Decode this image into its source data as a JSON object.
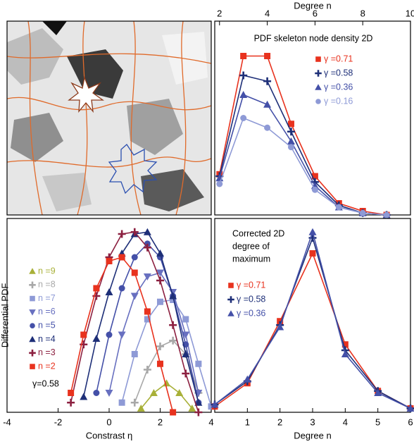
{
  "chart_data": [
    {
      "type": "line",
      "title": "PDF skeleton node density 2D",
      "xlabel": "Degree n",
      "xaxis_position": "top",
      "xlim": [
        1.8,
        10
      ],
      "xticks": [
        2,
        4,
        6,
        8,
        10
      ],
      "ylim": [
        0,
        1
      ],
      "series": [
        {
          "name": "γ =0.71",
          "color": "#e8321e",
          "marker": "square",
          "x": [
            2,
            3,
            4,
            5,
            6,
            7,
            8,
            9
          ],
          "values": [
            0.21,
            0.82,
            0.82,
            0.47,
            0.2,
            0.06,
            0.02,
            0
          ]
        },
        {
          "name": "γ =0.58",
          "color": "#1e2f78",
          "marker": "plus",
          "x": [
            2,
            3,
            4,
            5,
            6,
            7,
            8,
            9
          ],
          "values": [
            0.2,
            0.72,
            0.69,
            0.43,
            0.17,
            0.05,
            0.01,
            0
          ]
        },
        {
          "name": "γ =0.36",
          "color": "#4450a8",
          "marker": "triangle",
          "x": [
            2,
            3,
            4,
            5,
            6,
            7,
            8,
            9
          ],
          "values": [
            0.19,
            0.62,
            0.57,
            0.38,
            0.15,
            0.04,
            0.01,
            0
          ]
        },
        {
          "name": "γ =0.16",
          "color": "#8e9ad6",
          "marker": "circle",
          "x": [
            2,
            3,
            4,
            5,
            6,
            7,
            8,
            9
          ],
          "values": [
            0.16,
            0.5,
            0.45,
            0.35,
            0.13,
            0.04,
            0.01,
            0
          ]
        }
      ]
    },
    {
      "type": "line",
      "xlabel": "Constrast η",
      "ylabel": "Differential PDF",
      "annotation": "γ=0.58",
      "xlim": [
        -4,
        4
      ],
      "xticks": [
        -4,
        -2,
        0,
        2,
        4
      ],
      "ylim": [
        0,
        1
      ],
      "series": [
        {
          "name": "n =9",
          "color": "#a8b038",
          "marker": "triangle",
          "x": [
            1.25,
            1.75,
            2.25,
            2.75,
            3.25
          ],
          "values": [
            0.02,
            0.1,
            0.15,
            0.1,
            0.02
          ]
        },
        {
          "name": "n =8",
          "color": "#a8a8a8",
          "marker": "plus",
          "x": [
            1,
            1.5,
            2,
            2.5,
            3,
            3.5
          ],
          "values": [
            0.05,
            0.22,
            0.34,
            0.37,
            0.3,
            0.1
          ]
        },
        {
          "name": "n =7",
          "color": "#8e9ad6",
          "marker": "square",
          "x": [
            0.5,
            1,
            1.5,
            2,
            2.5,
            3,
            3.5,
            4
          ],
          "values": [
            0.05,
            0.3,
            0.48,
            0.57,
            0.58,
            0.48,
            0.25,
            0.03
          ]
        },
        {
          "name": "n =6",
          "color": "#6870c0",
          "marker": "triangle-down",
          "x": [
            0,
            0.5,
            1,
            1.5,
            2,
            2.5,
            3,
            3.5
          ],
          "values": [
            0.1,
            0.4,
            0.6,
            0.7,
            0.72,
            0.62,
            0.4,
            0.1
          ]
        },
        {
          "name": "n =5",
          "color": "#4450a8",
          "marker": "circle",
          "x": [
            -0.5,
            0,
            0.5,
            1,
            1.5,
            2,
            2.5,
            3,
            3.5
          ],
          "values": [
            0.1,
            0.4,
            0.64,
            0.8,
            0.87,
            0.8,
            0.6,
            0.35,
            0.05
          ]
        },
        {
          "name": "n =4",
          "color": "#1e2f78",
          "marker": "triangle",
          "x": [
            -1,
            -0.5,
            0,
            0.5,
            1,
            1.5,
            2,
            2.5,
            3,
            3.5
          ],
          "values": [
            0.08,
            0.38,
            0.62,
            0.82,
            0.92,
            0.93,
            0.82,
            0.6,
            0.3,
            0.05
          ]
        },
        {
          "name": "n =3",
          "color": "#8c2040",
          "marker": "plus",
          "x": [
            -1.5,
            -1,
            -0.5,
            0,
            0.5,
            1,
            1.5,
            2,
            2.5,
            3,
            3.5
          ],
          "values": [
            0.05,
            0.35,
            0.6,
            0.8,
            0.92,
            0.93,
            0.85,
            0.68,
            0.45,
            0.2,
            0
          ]
        },
        {
          "name": "n =2",
          "color": "#e8321e",
          "marker": "square",
          "x": [
            -1.5,
            -1,
            -0.5,
            0,
            0.5,
            1,
            1.5,
            2,
            2.5
          ],
          "values": [
            0.1,
            0.4,
            0.64,
            0.78,
            0.8,
            0.72,
            0.52,
            0.25,
            0
          ]
        }
      ]
    },
    {
      "type": "line",
      "title_lines": [
        "Corrected 2D",
        "degree of",
        "maximum"
      ],
      "xlabel": "Degree n",
      "xlim": [
        0,
        6
      ],
      "xticks": [
        1,
        2,
        3,
        4,
        5,
        6
      ],
      "ylim": [
        0,
        1
      ],
      "series": [
        {
          "name": "γ =0.71",
          "color": "#e8321e",
          "marker": "square",
          "x": [
            0,
            1,
            2,
            3,
            4,
            5,
            6
          ],
          "values": [
            0.03,
            0.15,
            0.47,
            0.82,
            0.35,
            0.11,
            0.02
          ]
        },
        {
          "name": "γ =0.58",
          "color": "#1e2f78",
          "marker": "plus",
          "x": [
            0,
            1,
            2,
            3,
            4,
            5,
            6
          ],
          "values": [
            0.04,
            0.16,
            0.45,
            0.9,
            0.32,
            0.11,
            0.02
          ]
        },
        {
          "name": "γ =0.36",
          "color": "#4450a8",
          "marker": "triangle",
          "x": [
            0,
            1,
            2,
            3,
            4,
            5,
            6
          ],
          "values": [
            0.04,
            0.17,
            0.44,
            0.93,
            0.3,
            0.1,
            0.02
          ]
        }
      ]
    }
  ]
}
